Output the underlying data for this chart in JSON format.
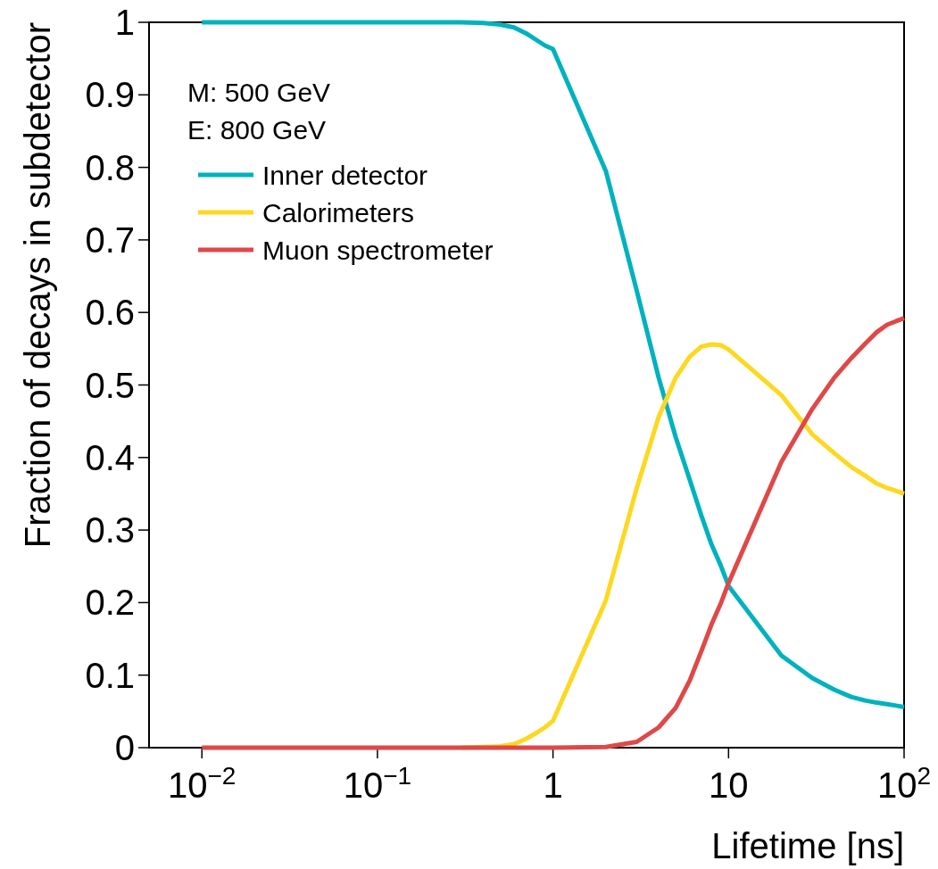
{
  "chart_data": {
    "type": "line",
    "xlabel": "Lifetime [ns]",
    "ylabel": "Fraction of decays in subdetector",
    "annotations": [
      "M: 500 GeV",
      "E: 800 GeV"
    ],
    "log": "x",
    "xlim": [
      0.005,
      100
    ],
    "ylim": [
      0,
      1
    ],
    "xticks": [
      {
        "value": 0.01,
        "label": "10$^{−2}$"
      },
      {
        "value": 0.1,
        "label": "10$^{−1}$"
      },
      1,
      10,
      {
        "value": 100,
        "label": "10$^{2}$"
      }
    ],
    "yticks": [
      0,
      0.1,
      0.2,
      0.3,
      0.4,
      0.5,
      0.6,
      0.7,
      0.8,
      0.9,
      1
    ],
    "x": [
      0.01,
      0.1,
      0.2,
      0.3,
      0.4,
      0.5,
      0.6,
      0.7,
      0.8,
      0.9,
      1,
      2,
      3,
      4,
      5,
      6,
      7,
      8,
      9,
      10,
      20,
      30,
      40,
      50,
      60,
      70,
      80,
      90,
      100
    ],
    "series": [
      {
        "name": "Inner detector",
        "color": "#00b2bd",
        "values": [
          1,
          1,
          1,
          1,
          0.999,
          0.997,
          0.993,
          0.985,
          0.976,
          0.968,
          0.963,
          0.795,
          0.63,
          0.51,
          0.428,
          0.37,
          0.32,
          0.28,
          0.252,
          0.223,
          0.127,
          0.096,
          0.08,
          0.07,
          0.065,
          0.062,
          0.06,
          0.058,
          0.056
        ]
      },
      {
        "name": "Calorimeters",
        "color": "#fdd821",
        "values": [
          null,
          null,
          null,
          0,
          0.001,
          0.002,
          0.005,
          0.012,
          0.02,
          0.028,
          0.037,
          0.203,
          0.358,
          0.456,
          0.51,
          0.539,
          0.553,
          0.556,
          0.555,
          0.549,
          0.486,
          0.432,
          0.406,
          0.387,
          0.375,
          0.364,
          0.358,
          0.354,
          0.35
        ]
      },
      {
        "name": "Muon spectrometer",
        "color": "#e04848",
        "values": [
          0,
          0,
          0,
          0,
          0,
          0,
          0,
          0,
          0,
          0,
          0,
          0.001,
          0.008,
          0.028,
          0.055,
          0.092,
          0.133,
          0.17,
          0.198,
          0.227,
          0.394,
          0.467,
          0.51,
          0.537,
          0.557,
          0.573,
          0.583,
          0.588,
          0.592
        ]
      }
    ],
    "legend": "top left",
    "grid": false,
    "line_style": "solid",
    "marker": "none"
  }
}
